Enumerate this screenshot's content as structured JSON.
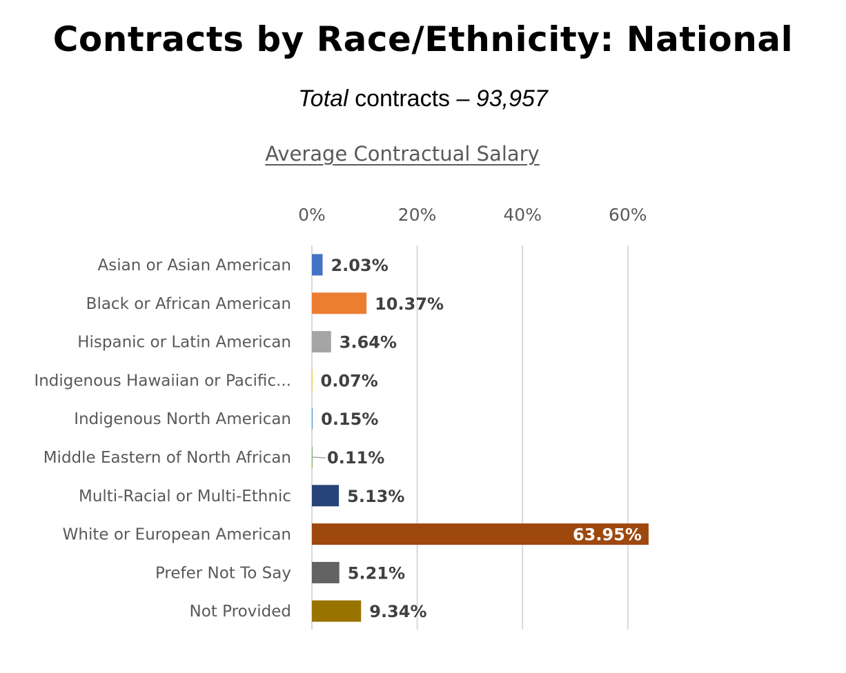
{
  "header": {
    "title": "Contracts by Race/Ethnicity: National",
    "subtitle": "Total contracts – 93,957"
  },
  "chart_data": {
    "type": "bar",
    "orientation": "horizontal",
    "title": "Average Contractual Salary",
    "xlabel": "",
    "ylabel": "",
    "xlim": [
      0,
      64
    ],
    "x_ticks": [
      "0%",
      "20%",
      "40%",
      "60%"
    ],
    "x_tick_values": [
      0,
      20,
      40,
      60
    ],
    "axis_position": "top",
    "grid": true,
    "categories": [
      "Asian or Asian American",
      "Black or African American",
      "Hispanic or Latin American",
      "Indigenous Hawaiian or Pacific...",
      "Indigenous North American",
      "Middle Eastern of North African",
      "Multi-Racial or Multi-Ethnic",
      "White or European American",
      "Prefer Not To Say",
      "Not Provided"
    ],
    "values": [
      2.03,
      10.37,
      3.64,
      0.07,
      0.15,
      0.11,
      5.13,
      63.95,
      5.21,
      9.34
    ],
    "value_labels": [
      "2.03%",
      "10.37%",
      "3.64%",
      "0.07%",
      "0.15%",
      "0.11%",
      "5.13%",
      "63.95%",
      "5.21%",
      "9.34%"
    ],
    "colors": [
      "#4472c4",
      "#ed7d31",
      "#a5a5a5",
      "#ffc000",
      "#5b9bd5",
      "#70ad47",
      "#264478",
      "#9e480e",
      "#636363",
      "#997300"
    ],
    "label_inside": [
      false,
      false,
      false,
      false,
      false,
      false,
      false,
      true,
      false,
      false
    ],
    "legend": "none"
  }
}
